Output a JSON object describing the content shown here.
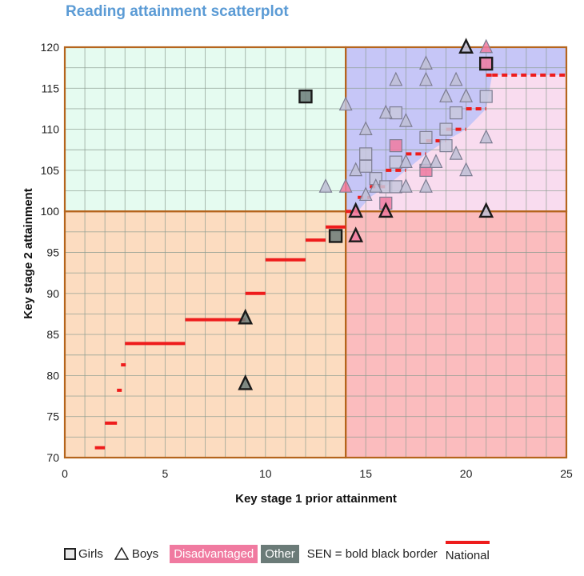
{
  "colors": {
    "title": "#5b9bd5",
    "grid": "#8a9b8f",
    "quadrant_border": "#b5651d",
    "q_top_left": "#e5fbf0",
    "q_top_right": "#c6c6f7",
    "q_top_right_light": "#f9dcef",
    "q_bottom_left": "#fcdcc0",
    "q_bottom_right": "#fbbcbe",
    "girls_fill": "#c8c8dd",
    "boys_fill": "#c0c0d6",
    "disadvantaged": "#f07aa0",
    "other": "#6b7b78",
    "national": "#ee1c1c"
  },
  "legend": {
    "girls": "Girls",
    "boys": "Boys",
    "disadvantaged": "Disadvantaged",
    "other": "Other",
    "sen": "SEN = bold black border",
    "national": "National"
  },
  "chart_data": {
    "type": "scatter",
    "title": "Reading attainment scatterplot",
    "xlabel": "Key stage 1 prior attainment",
    "ylabel": "Key stage 2 attainment",
    "xlim": [
      0,
      25
    ],
    "ylim": [
      70,
      120
    ],
    "x_ticks": [
      0,
      5,
      10,
      15,
      20,
      25
    ],
    "y_ticks": [
      70,
      75,
      80,
      85,
      90,
      95,
      100,
      105,
      110,
      115,
      120
    ],
    "grid": true,
    "quadrant_split": {
      "x": 14,
      "y": 100
    },
    "national_line": [
      [
        2.0,
        71.2
      ],
      [
        2.6,
        74.2
      ],
      [
        2.8,
        78.2
      ],
      [
        3.0,
        81.3
      ],
      [
        6.0,
        83.9
      ],
      [
        9.0,
        86.8
      ],
      [
        10.0,
        90.0
      ],
      [
        12.0,
        94.1
      ],
      [
        13.0,
        96.5
      ],
      [
        14.0,
        98.1
      ],
      [
        14.6,
        100.0
      ],
      [
        15.2,
        101.7
      ],
      [
        16.0,
        103.0
      ],
      [
        17.0,
        105.0
      ],
      [
        18.0,
        107.0
      ],
      [
        19.0,
        108.6
      ],
      [
        20.0,
        110.0
      ],
      [
        21.0,
        112.5
      ],
      [
        21.3,
        116.6
      ],
      [
        25.0,
        116.6
      ]
    ],
    "series": [
      {
        "name": "Girls",
        "marker": "square",
        "points": [
          {
            "x": 12.0,
            "y": 114.0,
            "group": "other",
            "sen": true
          },
          {
            "x": 13.5,
            "y": 97.0,
            "group": "other",
            "sen": true
          },
          {
            "x": 15.0,
            "y": 107.0,
            "group": "none",
            "sen": false
          },
          {
            "x": 15.0,
            "y": 105.5,
            "group": "none",
            "sen": false
          },
          {
            "x": 15.5,
            "y": 104.0,
            "group": "none",
            "sen": false
          },
          {
            "x": 16.0,
            "y": 101.0,
            "group": "disadvantaged",
            "sen": false
          },
          {
            "x": 16.0,
            "y": 103.0,
            "group": "none",
            "sen": false
          },
          {
            "x": 16.5,
            "y": 112.0,
            "group": "none",
            "sen": false
          },
          {
            "x": 16.5,
            "y": 106.0,
            "group": "none",
            "sen": false
          },
          {
            "x": 16.5,
            "y": 108.0,
            "group": "disadvantaged",
            "sen": false
          },
          {
            "x": 16.5,
            "y": 103.0,
            "group": "none",
            "sen": false
          },
          {
            "x": 18.0,
            "y": 109.0,
            "group": "none",
            "sen": false
          },
          {
            "x": 18.0,
            "y": 105.0,
            "group": "disadvantaged",
            "sen": false
          },
          {
            "x": 19.0,
            "y": 110.0,
            "group": "none",
            "sen": false
          },
          {
            "x": 19.0,
            "y": 108.0,
            "group": "none",
            "sen": false
          },
          {
            "x": 19.5,
            "y": 112.0,
            "group": "none",
            "sen": false
          },
          {
            "x": 21.0,
            "y": 118.0,
            "group": "disadvantaged",
            "sen": true
          },
          {
            "x": 21.0,
            "y": 114.0,
            "group": "none",
            "sen": false
          }
        ]
      },
      {
        "name": "Boys",
        "marker": "triangle",
        "points": [
          {
            "x": 9.0,
            "y": 87.0,
            "group": "other",
            "sen": true
          },
          {
            "x": 9.0,
            "y": 79.0,
            "group": "other",
            "sen": true
          },
          {
            "x": 13.0,
            "y": 103.0,
            "group": "none",
            "sen": false
          },
          {
            "x": 14.0,
            "y": 113.0,
            "group": "none",
            "sen": false
          },
          {
            "x": 14.0,
            "y": 103.0,
            "group": "disadvantaged",
            "sen": false
          },
          {
            "x": 14.5,
            "y": 105.0,
            "group": "none",
            "sen": false
          },
          {
            "x": 14.5,
            "y": 100.0,
            "group": "disadvantaged",
            "sen": true
          },
          {
            "x": 14.5,
            "y": 97.0,
            "group": "disadvantaged",
            "sen": true
          },
          {
            "x": 15.0,
            "y": 110.0,
            "group": "none",
            "sen": false
          },
          {
            "x": 15.0,
            "y": 102.0,
            "group": "none",
            "sen": false
          },
          {
            "x": 15.5,
            "y": 103.0,
            "group": "none",
            "sen": false
          },
          {
            "x": 16.0,
            "y": 112.0,
            "group": "none",
            "sen": false
          },
          {
            "x": 16.0,
            "y": 100.0,
            "group": "disadvantaged",
            "sen": true
          },
          {
            "x": 16.5,
            "y": 116.0,
            "group": "none",
            "sen": false
          },
          {
            "x": 17.0,
            "y": 111.0,
            "group": "none",
            "sen": false
          },
          {
            "x": 17.0,
            "y": 106.0,
            "group": "none",
            "sen": false
          },
          {
            "x": 17.0,
            "y": 103.0,
            "group": "none",
            "sen": false
          },
          {
            "x": 18.0,
            "y": 118.0,
            "group": "none",
            "sen": false
          },
          {
            "x": 18.0,
            "y": 116.0,
            "group": "none",
            "sen": false
          },
          {
            "x": 18.0,
            "y": 106.0,
            "group": "none",
            "sen": false
          },
          {
            "x": 18.0,
            "y": 103.0,
            "group": "none",
            "sen": false
          },
          {
            "x": 18.5,
            "y": 106.0,
            "group": "none",
            "sen": false
          },
          {
            "x": 19.0,
            "y": 114.0,
            "group": "none",
            "sen": false
          },
          {
            "x": 19.5,
            "y": 116.0,
            "group": "none",
            "sen": false
          },
          {
            "x": 19.5,
            "y": 107.0,
            "group": "none",
            "sen": false
          },
          {
            "x": 20.0,
            "y": 120.0,
            "group": "none",
            "sen": true
          },
          {
            "x": 20.0,
            "y": 114.0,
            "group": "none",
            "sen": false
          },
          {
            "x": 20.0,
            "y": 105.0,
            "group": "none",
            "sen": false
          },
          {
            "x": 21.0,
            "y": 120.0,
            "group": "disadvantaged",
            "sen": false
          },
          {
            "x": 21.0,
            "y": 109.0,
            "group": "none",
            "sen": false
          },
          {
            "x": 21.0,
            "y": 100.0,
            "group": "none",
            "sen": true
          }
        ]
      }
    ]
  }
}
